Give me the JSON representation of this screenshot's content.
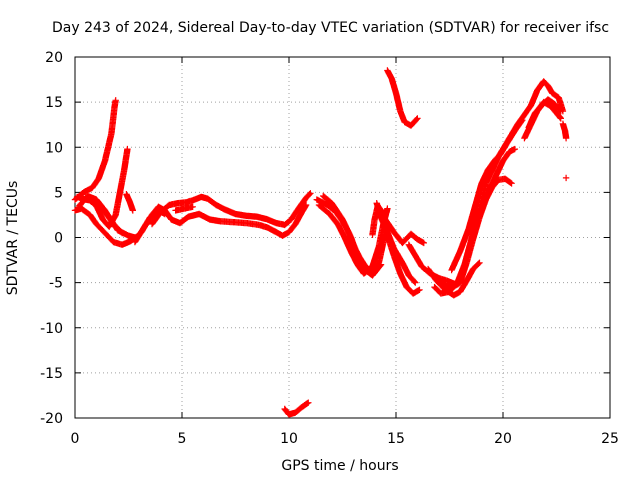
{
  "chart_data": {
    "type": "scatter",
    "title": "Day 243 of 2024, Sidereal Day-to-day VTEC variation (SDTVAR) for receiver ifsc",
    "xlabel": "GPS time / hours",
    "ylabel": "SDTVAR / TECUs",
    "xlim": [
      0,
      25
    ],
    "ylim": [
      -20,
      20
    ],
    "xticks": [
      0,
      5,
      10,
      15,
      20,
      25
    ],
    "yticks": [
      -20,
      -15,
      -10,
      -5,
      0,
      5,
      10,
      15,
      20
    ],
    "grid": true,
    "marker": "plus",
    "color": "#ff0000",
    "tracks": [
      [
        [
          0.0,
          4.2
        ],
        [
          0.4,
          5.0
        ],
        [
          0.8,
          5.5
        ],
        [
          1.1,
          6.5
        ],
        [
          1.4,
          8.5
        ],
        [
          1.7,
          11.5
        ],
        [
          1.85,
          14.5
        ],
        [
          1.9,
          15.2
        ]
      ],
      [
        [
          0.5,
          4.5
        ],
        [
          1.0,
          3.5
        ],
        [
          1.3,
          2.0
        ],
        [
          1.6,
          1.2
        ],
        [
          1.9,
          2.5
        ],
        [
          2.1,
          5.0
        ],
        [
          2.3,
          7.5
        ],
        [
          2.45,
          9.8
        ]
      ],
      [
        [
          0.0,
          3.0
        ],
        [
          0.3,
          3.2
        ],
        [
          0.7,
          2.5
        ],
        [
          1.0,
          1.5
        ],
        [
          1.4,
          0.5
        ],
        [
          1.8,
          -0.5
        ],
        [
          2.2,
          -0.8
        ],
        [
          2.6,
          -0.4
        ],
        [
          3.0,
          0.3
        ]
      ],
      [
        [
          0.1,
          4.5
        ],
        [
          0.5,
          4.2
        ],
        [
          1.0,
          4.0
        ],
        [
          1.5,
          2.5
        ],
        [
          2.0,
          0.8
        ],
        [
          2.5,
          0.2
        ],
        [
          2.8,
          0.0
        ]
      ],
      [
        [
          0.2,
          3.5
        ],
        [
          0.6,
          4.6
        ],
        [
          1.0,
          4.2
        ],
        [
          1.4,
          3.0
        ],
        [
          1.8,
          1.5
        ],
        [
          2.2,
          0.5
        ]
      ],
      [
        [
          2.4,
          4.8
        ],
        [
          2.55,
          4.0
        ],
        [
          2.7,
          3.0
        ]
      ],
      [
        [
          2.8,
          -0.5
        ],
        [
          3.2,
          1.0
        ],
        [
          3.6,
          2.5
        ],
        [
          3.9,
          3.4
        ],
        [
          4.2,
          3.0
        ],
        [
          4.5,
          2.0
        ],
        [
          4.9,
          1.6
        ],
        [
          5.3,
          2.3
        ],
        [
          5.8,
          2.6
        ],
        [
          6.3,
          2.0
        ],
        [
          6.8,
          1.8
        ],
        [
          7.4,
          1.7
        ],
        [
          8.0,
          1.6
        ],
        [
          8.6,
          1.4
        ],
        [
          9.0,
          1.1
        ],
        [
          9.4,
          0.6
        ],
        [
          9.7,
          0.2
        ],
        [
          10.0,
          0.6
        ],
        [
          10.3,
          1.5
        ],
        [
          10.6,
          2.8
        ],
        [
          10.8,
          3.6
        ]
      ],
      [
        [
          3.1,
          0.6
        ],
        [
          3.5,
          2.2
        ],
        [
          3.9,
          3.0
        ],
        [
          4.2,
          2.6
        ]
      ],
      [
        [
          3.6,
          1.5
        ],
        [
          4.0,
          2.8
        ],
        [
          4.4,
          3.6
        ],
        [
          4.8,
          3.8
        ],
        [
          5.2,
          3.9
        ],
        [
          5.6,
          4.2
        ],
        [
          5.9,
          4.5
        ],
        [
          6.2,
          4.3
        ],
        [
          6.6,
          3.6
        ],
        [
          7.0,
          3.1
        ],
        [
          7.5,
          2.6
        ],
        [
          8.0,
          2.4
        ],
        [
          8.5,
          2.3
        ],
        [
          9.0,
          2.0
        ],
        [
          9.4,
          1.6
        ],
        [
          9.8,
          1.4
        ],
        [
          10.1,
          2.0
        ],
        [
          10.5,
          3.4
        ],
        [
          10.8,
          4.4
        ],
        [
          11.0,
          4.9
        ]
      ],
      [
        [
          4.7,
          3.0
        ],
        [
          5.1,
          3.2
        ],
        [
          5.5,
          3.4
        ]
      ],
      [
        [
          9.8,
          -19.0
        ],
        [
          10.0,
          -19.6
        ],
        [
          10.3,
          -19.4
        ],
        [
          10.6,
          -18.8
        ],
        [
          10.9,
          -18.3
        ]
      ],
      [
        [
          11.3,
          4.2
        ],
        [
          11.8,
          3.6
        ],
        [
          12.2,
          2.8
        ],
        [
          12.5,
          1.8
        ],
        [
          12.8,
          0.5
        ],
        [
          13.0,
          -0.8
        ],
        [
          13.3,
          -2.2
        ],
        [
          13.6,
          -3.3
        ],
        [
          13.9,
          -3.8
        ],
        [
          14.2,
          -2.8
        ],
        [
          14.4,
          -0.6
        ],
        [
          14.6,
          1.5
        ]
      ],
      [
        [
          11.4,
          3.6
        ],
        [
          11.9,
          2.6
        ],
        [
          12.3,
          1.4
        ],
        [
          12.6,
          0.0
        ],
        [
          12.9,
          -1.6
        ],
        [
          13.2,
          -3.0
        ],
        [
          13.5,
          -4.0
        ],
        [
          13.9,
          -3.2
        ],
        [
          14.2,
          -1.0
        ],
        [
          14.4,
          1.4
        ],
        [
          14.6,
          3.2
        ]
      ],
      [
        [
          11.6,
          4.6
        ],
        [
          12.0,
          3.8
        ],
        [
          12.5,
          2.0
        ],
        [
          12.9,
          0.0
        ],
        [
          13.2,
          -2.0
        ],
        [
          13.5,
          -3.5
        ],
        [
          13.9,
          -4.2
        ],
        [
          14.3,
          -3.0
        ]
      ],
      [
        [
          13.9,
          0.3
        ],
        [
          14.0,
          2.0
        ],
        [
          14.15,
          3.5
        ],
        [
          14.3,
          3.0
        ],
        [
          14.5,
          1.0
        ],
        [
          14.7,
          -0.5
        ],
        [
          14.9,
          -2.0
        ],
        [
          15.2,
          -4.0
        ],
        [
          15.5,
          -5.5
        ],
        [
          15.8,
          -6.2
        ],
        [
          16.1,
          -5.8
        ]
      ],
      [
        [
          14.1,
          3.8
        ],
        [
          14.3,
          2.2
        ],
        [
          14.6,
          0.6
        ],
        [
          14.9,
          -1.2
        ],
        [
          15.3,
          -2.8
        ],
        [
          15.6,
          -4.2
        ],
        [
          15.9,
          -5.0
        ]
      ],
      [
        [
          14.5,
          2.0
        ],
        [
          14.9,
          0.6
        ],
        [
          15.3,
          -0.6
        ],
        [
          15.7,
          0.4
        ],
        [
          16.0,
          -0.2
        ],
        [
          16.3,
          -0.6
        ]
      ],
      [
        [
          15.6,
          -0.8
        ],
        [
          15.9,
          -2.0
        ],
        [
          16.2,
          -3.2
        ],
        [
          16.6,
          -4.0
        ],
        [
          17.0,
          -4.5
        ],
        [
          17.4,
          -4.8
        ],
        [
          17.8,
          -5.2
        ]
      ],
      [
        [
          14.6,
          18.5
        ],
        [
          14.8,
          17.6
        ],
        [
          15.0,
          16.0
        ],
        [
          15.2,
          14.0
        ],
        [
          15.4,
          12.8
        ],
        [
          15.7,
          12.4
        ],
        [
          16.0,
          13.2
        ]
      ],
      [
        [
          16.5,
          -3.5
        ],
        [
          16.9,
          -4.8
        ],
        [
          17.3,
          -5.8
        ],
        [
          17.7,
          -6.4
        ],
        [
          18.0,
          -6.0
        ],
        [
          18.3,
          -4.8
        ],
        [
          18.6,
          -3.5
        ],
        [
          18.9,
          -2.8
        ]
      ],
      [
        [
          16.8,
          -5.5
        ],
        [
          17.1,
          -6.2
        ],
        [
          17.5,
          -6.0
        ],
        [
          17.9,
          -4.8
        ],
        [
          18.2,
          -3.0
        ],
        [
          18.5,
          -0.5
        ],
        [
          18.8,
          2.0
        ],
        [
          19.1,
          4.0
        ],
        [
          19.4,
          5.5
        ],
        [
          19.7,
          7.0
        ],
        [
          20.0,
          8.5
        ],
        [
          20.3,
          9.5
        ],
        [
          20.55,
          9.8
        ]
      ],
      [
        [
          16.9,
          -4.6
        ],
        [
          17.2,
          -5.2
        ],
        [
          17.6,
          -5.6
        ],
        [
          18.0,
          -5.0
        ],
        [
          18.3,
          -2.8
        ],
        [
          18.6,
          -0.2
        ],
        [
          18.9,
          2.2
        ],
        [
          19.2,
          4.2
        ],
        [
          19.5,
          5.6
        ],
        [
          19.8,
          6.4
        ],
        [
          20.1,
          6.5
        ],
        [
          20.4,
          6.0
        ]
      ],
      [
        [
          17.6,
          -3.6
        ],
        [
          18.0,
          -1.5
        ],
        [
          18.4,
          1.0
        ],
        [
          18.7,
          3.5
        ],
        [
          19.0,
          6.0
        ],
        [
          19.3,
          7.5
        ],
        [
          19.6,
          8.5
        ],
        [
          19.9,
          9.3
        ],
        [
          20.2,
          10.5
        ],
        [
          20.6,
          12.0
        ],
        [
          20.9,
          13.0
        ]
      ],
      [
        [
          18.3,
          -2.2
        ],
        [
          18.6,
          0.5
        ],
        [
          18.9,
          3.0
        ],
        [
          19.2,
          6.0
        ],
        [
          19.5,
          7.5
        ],
        [
          19.8,
          9.0
        ],
        [
          20.1,
          10.2
        ],
        [
          20.4,
          11.4
        ],
        [
          20.7,
          12.6
        ],
        [
          21.0,
          13.6
        ],
        [
          21.3,
          14.6
        ],
        [
          21.6,
          16.3
        ],
        [
          21.9,
          17.3
        ],
        [
          22.1,
          16.8
        ],
        [
          22.3,
          16.0
        ],
        [
          22.6,
          15.5
        ],
        [
          22.8,
          14.0
        ]
      ],
      [
        [
          21.0,
          11.0
        ],
        [
          21.3,
          12.5
        ],
        [
          21.6,
          14.0
        ],
        [
          21.9,
          15.0
        ],
        [
          22.2,
          14.6
        ],
        [
          22.5,
          13.8
        ],
        [
          22.7,
          13.2
        ]
      ],
      [
        [
          21.2,
          12.2
        ],
        [
          21.5,
          13.8
        ],
        [
          21.8,
          14.6
        ],
        [
          22.1,
          15.3
        ],
        [
          22.4,
          14.8
        ],
        [
          22.7,
          14.0
        ]
      ],
      [
        [
          22.8,
          12.6
        ],
        [
          22.9,
          11.8
        ],
        [
          22.95,
          11.0
        ]
      ],
      [
        [
          22.95,
          6.6
        ]
      ]
    ]
  }
}
